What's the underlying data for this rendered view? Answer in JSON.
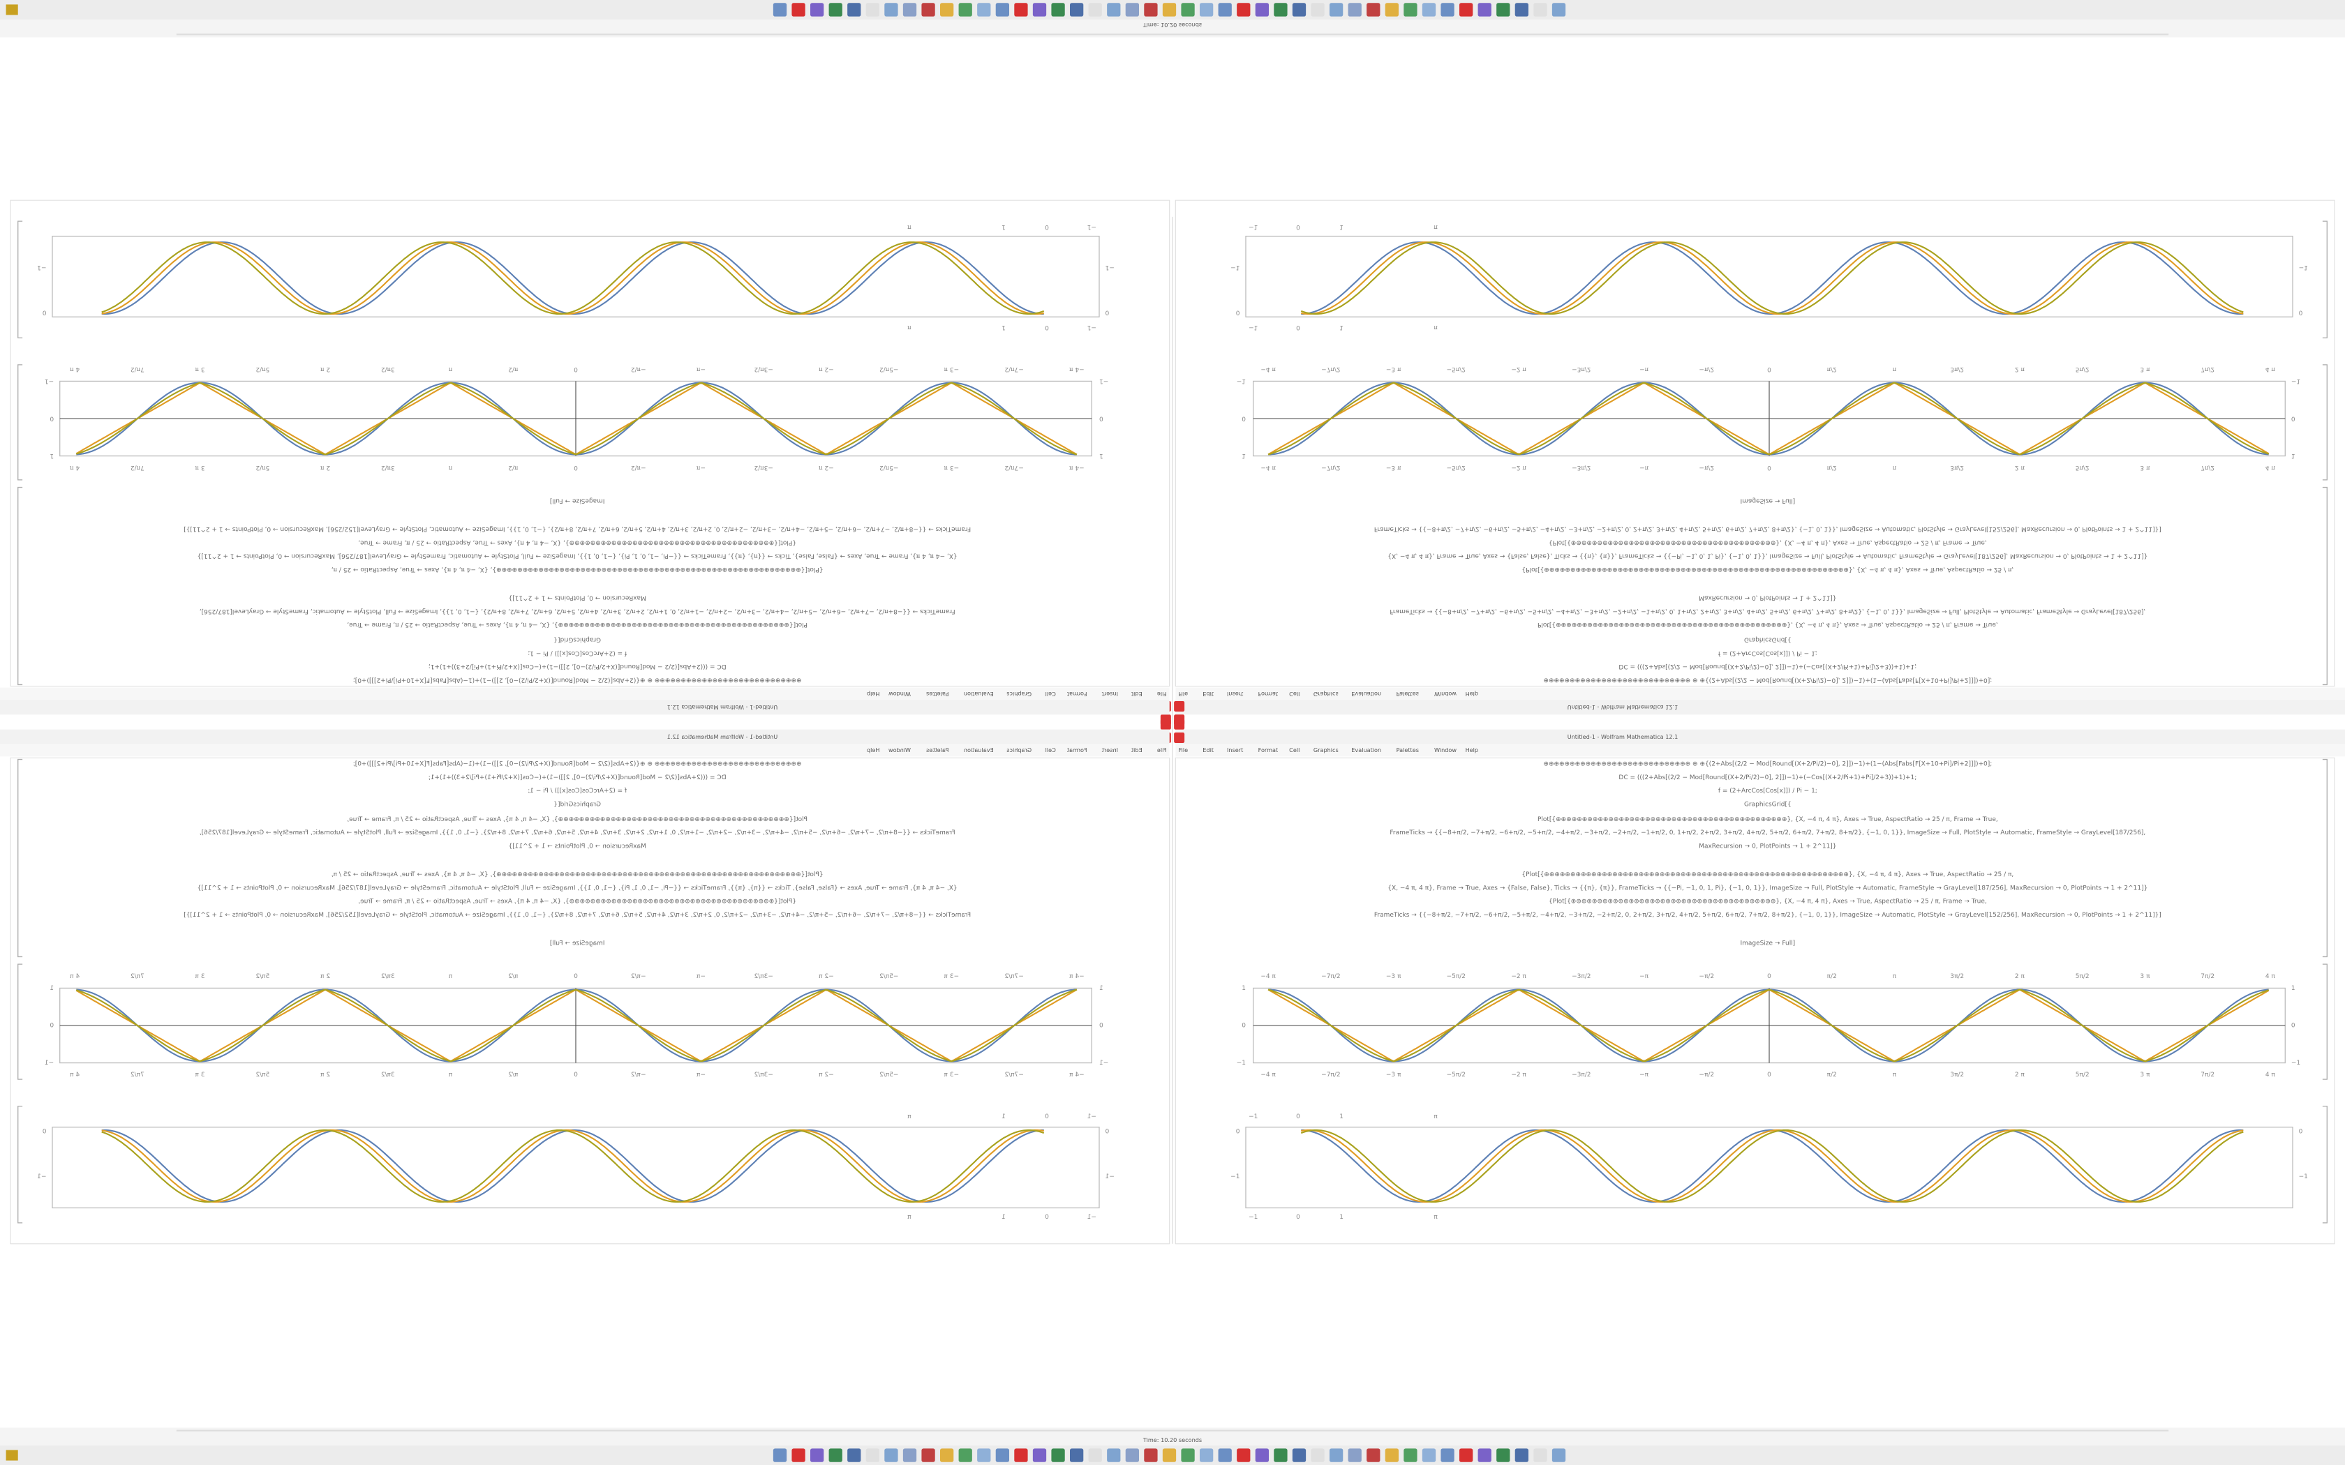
{
  "window": {
    "title": "Untitled-1 - Wolfram Mathematica 12.1",
    "menu": [
      "File",
      "Edit",
      "Insert",
      "Format",
      "Cell",
      "Graphics",
      "Evaluation",
      "Palettes",
      "Window",
      "Help"
    ]
  },
  "status": "Time: 10.20 seconds",
  "code": {
    "lines": [
      "⊕⊕⊕⊕⊕⊕⊕⊕⊕⊕⊕⊕⊕⊕⊕⊕⊕⊕⊕⊕⊕⊕⊕⊕⊕⊕⊕⊕  ⊕ ⊕{(2+Abs[(2/2 − Mod[Round[(X+2/Pi/2)−0], 2]])−1)+(1−(Abs[Fabs[F[X+10+Pi]/Pi+2]]])+0];",
      "DC = (((2+Abs[(2/2 − Mod[Round[(X+2/Pi/2)−0], 2]])−1)+(−Cos[(X+2/Pi+1)+Pi]/2+3))+1)+1;",
      "f = (2+ArcCos[Cos[x]]) / Pi − 1;",
      "GraphicsGrid[{",
      "Plot[{⊕⊕⊕⊕⊕⊕⊕⊕⊕⊕⊕⊕⊕⊕⊕⊕⊕⊕⊕⊕⊕⊕⊕⊕⊕⊕⊕⊕⊕⊕⊕⊕⊕⊕⊕⊕⊕⊕⊕⊕⊕⊕⊕⊕}, {X, −4 π, 4 π}, Axes → True, AspectRatio → 25 / π, Frame → True,",
      "FrameTicks → {{−8+π/2, −7+π/2, −6+π/2, −5+π/2, −4+π/2, −3+π/2, −2+π/2, −1+π/2, 0, 1+π/2, 2+π/2, 3+π/2, 4+π/2, 5+π/2, 6+π/2, 7+π/2, 8+π/2}, {−1, 0, 1}}, ImageSize → Full, PlotStyle → Automatic, FrameStyle → GrayLevel[187/256],",
      "MaxRecursion → 0, PlotPoints → 1 + 2^11]}",
      "{Plot[{⊕⊕⊕⊕⊕⊕⊕⊕⊕⊕⊕⊕⊕⊕⊕⊕⊕⊕⊕⊕⊕⊕⊕⊕⊕⊕⊕⊕⊕⊕⊕⊕⊕⊕⊕⊕⊕⊕⊕⊕⊕⊕⊕⊕⊕⊕⊕⊕⊕⊕⊕⊕⊕⊕⊕⊕⊕⊕}, {X, −4 π, 4 π}, Axes → True, AspectRatio → 25 / π,",
      "{X, −4 π, 4 π}, Frame → True, Axes → {False, False}, Ticks → {{π}, {π}}, FrameTicks → {{−Pi, −1, 0, 1, Pi}, {−1, 0, 1}}, ImageSize → Full, PlotStyle → Automatic, FrameStyle → GrayLevel[187/256], MaxRecursion → 0, PlotPoints → 1 + 2^11]}",
      "{Plot[{⊕⊕⊕⊕⊕⊕⊕⊕⊕⊕⊕⊕⊕⊕⊕⊕⊕⊕⊕⊕⊕⊕⊕⊕⊕⊕⊕⊕⊕⊕⊕⊕⊕⊕⊕⊕⊕⊕⊕}, {X, −4 π, 4 π}, Axes → True, AspectRatio → 25 / π, Frame → True,",
      "FrameTicks → {{−8+π/2, −7+π/2, −6+π/2, −5+π/2, −4+π/2, −3+π/2, −2+π/2, 0, 2+π/2, 3+π/2, 4+π/2, 5+π/2, 6+π/2, 7+π/2, 8+π/2}, {−1, 0, 1}}, ImageSize → Automatic, PlotStyle → GrayLevel[152/256], MaxRecursion → 0, PlotPoints → 1 + 2^11]}]",
      "ImageSize → Full]"
    ]
  },
  "plot_top": {
    "xtick_labels": [
      "−4 π",
      "−7π/2",
      "−3 π",
      "−5π/2",
      "−2 π",
      "−3π/2",
      "−π",
      "−π/2",
      "0",
      "π/2",
      "π",
      "3π/2",
      "2 π",
      "5π/2",
      "3 π",
      "7π/2",
      "4 π"
    ],
    "ytick_labels": [
      "1",
      "0",
      "−1"
    ]
  },
  "plot_bottom": {
    "xtick_labels": [
      "−1",
      "0",
      "1",
      "π"
    ],
    "ytick_labels": [
      "0",
      "−1"
    ]
  }
}
